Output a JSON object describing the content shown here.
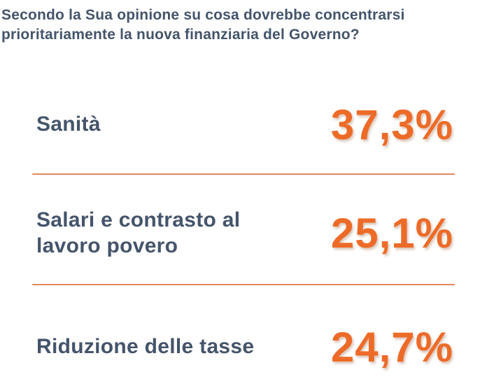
{
  "title": {
    "line1": "Secondo la Sua opinione su cosa dovrebbe concentrarsi",
    "line2": "prioritariamente la nuova finanziaria del Governo?"
  },
  "rows": [
    {
      "label": "Sanità",
      "value": "37,3%"
    },
    {
      "label": "Salari e contrasto al lavoro povero",
      "value": "25,1%"
    },
    {
      "label": "Riduzione delle tasse",
      "value": "24,7%"
    }
  ],
  "colors": {
    "label_slate": "#44546A",
    "value_orange": "#ED6B28",
    "divider_orange": "#E0875C",
    "background": "#FFFFFF"
  },
  "chart_data": {
    "type": "table",
    "title": "Secondo la Sua opinione su cosa dovrebbe concentrarsi prioritariamente la nuova finanziaria del Governo?",
    "categories": [
      "Sanità",
      "Salari e contrasto al lavoro povero",
      "Riduzione delle tasse"
    ],
    "values": [
      37.3,
      25.1,
      24.7
    ],
    "value_labels": [
      "37,3%",
      "25,1%",
      "24,7%"
    ],
    "unit": "%",
    "legend": "none",
    "grid": "off",
    "layout": "label-left value-right rows separated by orange rules"
  }
}
